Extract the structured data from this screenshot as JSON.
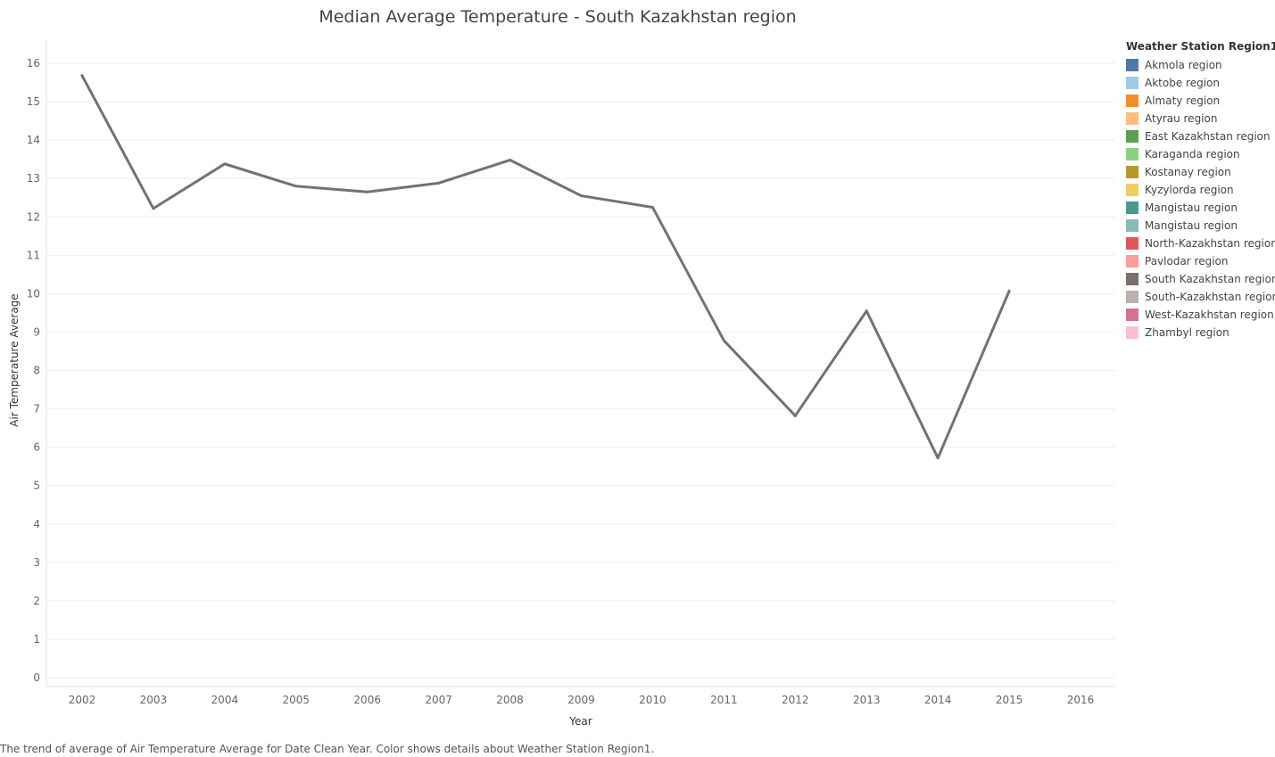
{
  "chart_data": {
    "type": "line",
    "title": "Median Average Temperature  - South Kazakhstan region",
    "xlabel": "Year",
    "ylabel": "Air Temperature Average",
    "categories": [
      "2002",
      "2003",
      "2004",
      "2005",
      "2006",
      "2007",
      "2008",
      "2009",
      "2010",
      "2011",
      "2012",
      "2013",
      "2014",
      "2015",
      "2016"
    ],
    "y_ticks": [
      0,
      1,
      2,
      3,
      4,
      5,
      6,
      7,
      8,
      9,
      10,
      11,
      12,
      13,
      14,
      15,
      16
    ],
    "ylim": [
      0,
      16.6
    ],
    "grid": true,
    "legend_position": "right",
    "series": [
      {
        "name": "South Kazakhstan region",
        "color": "#79706e",
        "values": [
          15.68,
          12.22,
          13.38,
          12.8,
          12.65,
          12.88,
          13.48,
          12.55,
          12.25,
          8.78,
          6.82,
          9.55,
          5.72,
          10.07,
          null
        ]
      }
    ]
  },
  "legend": {
    "title": "Weather Station Region1",
    "items": [
      {
        "label": "Akmola region",
        "color": "#4e79a7"
      },
      {
        "label": "Aktobe region",
        "color": "#a0cbe8"
      },
      {
        "label": "Almaty region",
        "color": "#f28e2b"
      },
      {
        "label": "Atyrau region",
        "color": "#ffbe7d"
      },
      {
        "label": "East Kazakhstan region",
        "color": "#59a14f"
      },
      {
        "label": "Karaganda region",
        "color": "#8cd17d"
      },
      {
        "label": "Kostanay region",
        "color": "#b6992d"
      },
      {
        "label": "Kyzylorda region",
        "color": "#f1ce63"
      },
      {
        "label": "Mangistau  region",
        "color": "#499894"
      },
      {
        "label": "Mangistau region",
        "color": "#86bcb6"
      },
      {
        "label": "North-Kazakhstan region",
        "color": "#e15759"
      },
      {
        "label": "Pavlodar region",
        "color": "#ff9d9a"
      },
      {
        "label": "South Kazakhstan region",
        "color": "#79706e"
      },
      {
        "label": "South-Kazakhstan region",
        "color": "#bab0ac"
      },
      {
        "label": "West-Kazakhstan region",
        "color": "#d37295"
      },
      {
        "label": "Zhambyl region",
        "color": "#fabfd2"
      }
    ]
  },
  "caption": "The trend of average of Air Temperature Average for Date Clean Year.  Color shows details about Weather Station Region1."
}
